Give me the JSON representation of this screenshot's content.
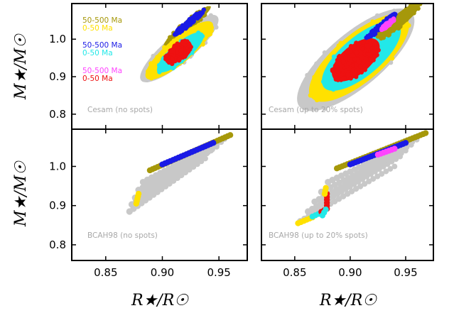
{
  "figure": {
    "xlabel": "R★/R☉",
    "ylabel": "M★/M☉"
  },
  "colors": {
    "gray": "#c8c8c8",
    "olive": "#a6980a",
    "yellow": "#ffe100",
    "blue": "#1a1ae6",
    "cyan": "#22e8e8",
    "magenta": "#ff44ff",
    "red": "#ee1111",
    "panel_label": "#a8a8a8"
  },
  "legend": [
    {
      "text": "50-500 Ma",
      "color": "#a6980a"
    },
    {
      "text": "0-50 Ma",
      "color": "#ffe100"
    },
    {
      "text": "50-500 Ma",
      "color": "#1a1ae6"
    },
    {
      "text": "0-50 Ma",
      "color": "#22e8e8"
    },
    {
      "text": "50-500 Ma",
      "color": "#ff44ff"
    },
    {
      "text": "0-50 Ma",
      "color": "#ee1111"
    }
  ],
  "chart_data": [
    {
      "type": "scatter",
      "panel": "top-left",
      "label": "Cesam (no spots)",
      "xlim": [
        0.82,
        0.975
      ],
      "ylim": [
        0.76,
        1.095
      ],
      "xticks": [],
      "yticks": [
        0.8,
        0.9,
        1.0
      ],
      "ytick_labels": [
        "0.8",
        "0.9",
        "1.0"
      ],
      "regions": [
        {
          "name": "all models",
          "color": "#c8c8c8",
          "center": [
            0.915,
            0.975
          ],
          "rx": 0.044,
          "ry": 0.068
        },
        {
          "name": "olive 50-500 Ma",
          "color": "#a6980a",
          "center": [
            0.922,
            1.035
          ],
          "rx": 0.027,
          "ry": 0.022
        },
        {
          "name": "yellow 0-50 Ma",
          "color": "#ffe100",
          "center": [
            0.915,
            0.97
          ],
          "rx": 0.038,
          "ry": 0.06
        },
        {
          "name": "cyan 0-50 Ma",
          "color": "#22e8e8",
          "center": [
            0.916,
            0.965
          ],
          "rx": 0.026,
          "ry": 0.045
        },
        {
          "name": "blue 50-500 Ma",
          "color": "#1a1ae6",
          "center": [
            0.924,
            1.045
          ],
          "rx": 0.018,
          "ry": 0.012
        },
        {
          "name": "red 0-50 Ma",
          "color": "#ee1111",
          "center": [
            0.914,
            0.965
          ],
          "rx": 0.014,
          "ry": 0.038
        }
      ]
    },
    {
      "type": "scatter",
      "panel": "top-right",
      "label": "Cesam (up to 20% spots)",
      "xlim": [
        0.82,
        0.975
      ],
      "ylim": [
        0.76,
        1.095
      ],
      "xticks": [],
      "yticks": [],
      "regions": [
        {
          "name": "all models",
          "color": "#c8c8c8",
          "center": [
            0.905,
            0.945
          ],
          "rx": 0.066,
          "ry": 0.13
        },
        {
          "name": "yellow 0-50 Ma",
          "color": "#ffe100",
          "center": [
            0.908,
            0.95
          ],
          "rx": 0.056,
          "ry": 0.115
        },
        {
          "name": "cyan 0-50 Ma",
          "color": "#22e8e8",
          "center": [
            0.91,
            0.955
          ],
          "rx": 0.044,
          "ry": 0.095
        },
        {
          "name": "red 0-50 Ma",
          "color": "#ee1111",
          "center": [
            0.905,
            0.945
          ],
          "rx": 0.026,
          "ry": 0.07
        },
        {
          "name": "olive 50-500 Ma",
          "color": "#a6980a",
          "center": [
            0.944,
            1.05
          ],
          "rx": 0.025,
          "ry": 0.03
        },
        {
          "name": "blue 50-500 Ma",
          "color": "#1a1ae6",
          "center": [
            0.928,
            1.035
          ],
          "rx": 0.018,
          "ry": 0.012
        },
        {
          "name": "magenta 50-500 Ma",
          "color": "#ff44ff",
          "center": [
            0.934,
            1.04
          ],
          "rx": 0.008,
          "ry": 0.008
        }
      ]
    },
    {
      "type": "scatter",
      "panel": "bottom-left",
      "label": "BCAH98 (no spots)",
      "xlim": [
        0.82,
        0.975
      ],
      "ylim": [
        0.76,
        1.095
      ],
      "xticks": [
        0.85,
        0.9,
        0.95
      ],
      "xtick_labels": [
        "0.85",
        "0.90",
        "0.95"
      ],
      "yticks": [
        0.8,
        0.9,
        1.0
      ],
      "ytick_labels": [
        "0.8",
        "0.9",
        "1.0"
      ],
      "tracks": [
        {
          "name": "grid line 1",
          "color": "#c8c8c8",
          "points": [
            [
              0.871,
              0.885
            ],
            [
              0.938,
              1.02
            ]
          ]
        },
        {
          "name": "grid line 2",
          "color": "#c8c8c8",
          "points": [
            [
              0.873,
              0.903
            ],
            [
              0.943,
              1.04
            ]
          ]
        },
        {
          "name": "grid line 3",
          "color": "#c8c8c8",
          "points": [
            [
              0.876,
              0.92
            ],
            [
              0.948,
              1.05
            ]
          ]
        },
        {
          "name": "grid line 4",
          "color": "#c8c8c8",
          "points": [
            [
              0.879,
              0.94
            ],
            [
              0.952,
              1.062
            ]
          ]
        },
        {
          "name": "grid line 5",
          "color": "#c8c8c8",
          "points": [
            [
              0.883,
              0.96
            ],
            [
              0.955,
              1.07
            ]
          ]
        },
        {
          "name": "olive 50-500 Ma",
          "color": "#a6980a",
          "points": [
            [
              0.889,
              0.99
            ],
            [
              0.96,
              1.08
            ]
          ]
        },
        {
          "name": "blue 50-500 Ma",
          "color": "#1a1ae6",
          "points": [
            [
              0.9,
              1.005
            ],
            [
              0.945,
              1.06
            ]
          ]
        },
        {
          "name": "yellow 0-50 Ma",
          "color": "#ffe100",
          "points": [
            [
              0.877,
              0.905
            ],
            [
              0.879,
              0.93
            ]
          ]
        }
      ]
    },
    {
      "type": "scatter",
      "panel": "bottom-right",
      "label": "BCAH98 (up to 20% spots)",
      "xlim": [
        0.82,
        0.975
      ],
      "ylim": [
        0.76,
        1.095
      ],
      "xticks": [
        0.85,
        0.9,
        0.95
      ],
      "xtick_labels": [
        "0.85",
        "0.90",
        "0.95"
      ],
      "yticks": [],
      "tracks": [
        {
          "name": "grid line 1",
          "color": "#c8c8c8",
          "points": [
            [
              0.855,
              0.86
            ],
            [
              0.94,
              1.0
            ]
          ]
        },
        {
          "name": "grid line 2",
          "color": "#c8c8c8",
          "points": [
            [
              0.862,
              0.885
            ],
            [
              0.945,
              1.025
            ]
          ]
        },
        {
          "name": "grid line 3",
          "color": "#c8c8c8",
          "points": [
            [
              0.868,
              0.91
            ],
            [
              0.95,
              1.04
            ]
          ]
        },
        {
          "name": "grid line 4",
          "color": "#c8c8c8",
          "points": [
            [
              0.874,
              0.935
            ],
            [
              0.955,
              1.055
            ]
          ]
        },
        {
          "name": "grid line 5",
          "color": "#c8c8c8",
          "points": [
            [
              0.88,
              0.96
            ],
            [
              0.96,
              1.068
            ]
          ]
        },
        {
          "name": "olive 50-500 Ma",
          "color": "#a6980a",
          "points": [
            [
              0.888,
              0.995
            ],
            [
              0.968,
              1.085
            ]
          ]
        },
        {
          "name": "blue 50-500 Ma",
          "color": "#1a1ae6",
          "points": [
            [
              0.9,
              1.005
            ],
            [
              0.95,
              1.06
            ]
          ]
        },
        {
          "name": "magenta 50-500 Ma",
          "color": "#ff44ff",
          "points": [
            [
              0.925,
              1.03
            ],
            [
              0.94,
              1.045
            ]
          ]
        },
        {
          "name": "yellow 0-50 Ma",
          "color": "#ffe100",
          "points": [
            [
              0.853,
              0.855
            ],
            [
              0.866,
              0.87
            ]
          ]
        },
        {
          "name": "cyan 0-50 Ma",
          "color": "#22e8e8",
          "points": [
            [
              0.866,
              0.872
            ],
            [
              0.874,
              0.882
            ]
          ]
        },
        {
          "name": "red 0-50 Ma",
          "color": "#ee1111",
          "points": [
            [
              0.874,
              0.884
            ],
            [
              0.879,
              0.892
            ],
            [
              0.879,
              0.93
            ]
          ]
        },
        {
          "name": "yellow 0-50 Ma upper",
          "color": "#ffe100",
          "points": [
            [
              0.877,
              0.93
            ],
            [
              0.878,
              0.945
            ]
          ]
        },
        {
          "name": "cyan 0-50 Ma upper",
          "color": "#22e8e8",
          "points": [
            [
              0.875,
              0.875
            ],
            [
              0.878,
              0.89
            ]
          ]
        }
      ]
    }
  ]
}
